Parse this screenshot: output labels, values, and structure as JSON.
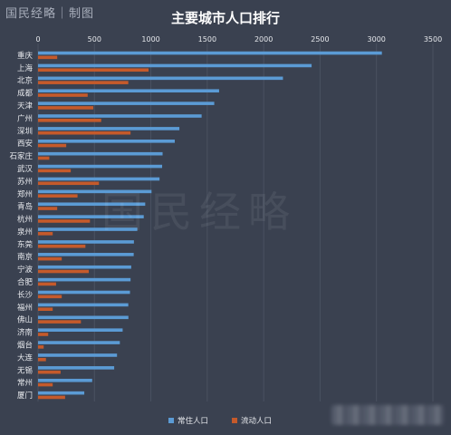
{
  "watermark": {
    "top_text": "国民经略｜制图",
    "center_text": "国民经略"
  },
  "colors": {
    "background": "#3a4150",
    "resident": "#5b9bd5",
    "floating": "#c55a2b",
    "text": "#e6e8ec",
    "grid": "#4a5161"
  },
  "chart_data": {
    "type": "bar",
    "orientation": "horizontal",
    "title": "主要城市人口排行",
    "xlim": [
      0,
      3500
    ],
    "xticks": [
      0,
      500,
      1000,
      1500,
      2000,
      2500,
      3000,
      3500
    ],
    "legend_position": "bottom",
    "categories": [
      "重庆",
      "上海",
      "北京",
      "成都",
      "天津",
      "广州",
      "深圳",
      "西安",
      "石家庄",
      "武汉",
      "苏州",
      "郑州",
      "青岛",
      "杭州",
      "泉州",
      "东莞",
      "南京",
      "宁波",
      "合肥",
      "长沙",
      "福州",
      "佛山",
      "济南",
      "烟台",
      "大连",
      "无锡",
      "常州",
      "厦门"
    ],
    "series": [
      {
        "name": "常住人口",
        "values": [
          3048,
          2425,
          2171,
          1605,
          1562,
          1450,
          1253,
          1212,
          1104,
          1100,
          1077,
          1006,
          950,
          937,
          880,
          850,
          848,
          826,
          820,
          815,
          800,
          801,
          750,
          725,
          700,
          675,
          480,
          410
        ]
      },
      {
        "name": "流动人口",
        "values": [
          170,
          980,
          800,
          440,
          490,
          560,
          820,
          250,
          100,
          290,
          540,
          350,
          170,
          460,
          130,
          420,
          210,
          450,
          160,
          210,
          130,
          380,
          90,
          50,
          70,
          200,
          130,
          240
        ]
      }
    ]
  }
}
